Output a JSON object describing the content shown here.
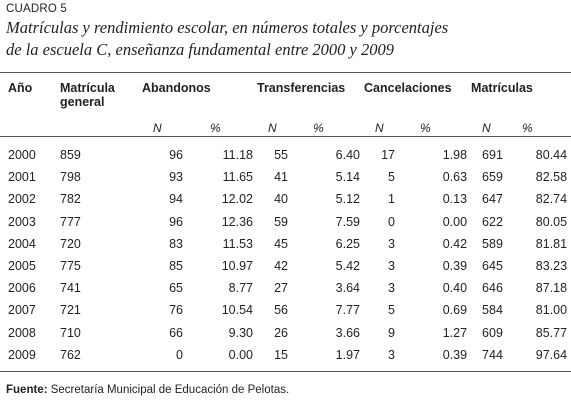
{
  "label": "CUADRO 5",
  "caption_line1": "Matrículas y rendimiento escolar, en números totales y porcentajes",
  "caption_line2": "de la escuela C, enseñanza fundamental entre 2000 y 2009",
  "headers": {
    "year": "Año",
    "enrollment_line1": "Matrícula",
    "enrollment_line2": "general",
    "dropouts": "Abandonos",
    "transfers": "Transferencias",
    "cancellations": "Cancelaciones",
    "enrollments": "Matrículas",
    "n": "N",
    "pct": "%"
  },
  "rows": [
    [
      "2000",
      "859",
      "96",
      "11.18",
      "55",
      "6.40",
      "17",
      "1.98",
      "691",
      "80.44"
    ],
    [
      "2001",
      "798",
      "93",
      "11.65",
      "41",
      "5.14",
      "5",
      "0.63",
      "659",
      "82.58"
    ],
    [
      "2002",
      "782",
      "94",
      "12.02",
      "40",
      "5.12",
      "1",
      "0.13",
      "647",
      "82.74"
    ],
    [
      "2003",
      "777",
      "96",
      "12.36",
      "59",
      "7.59",
      "0",
      "0.00",
      "622",
      "80.05"
    ],
    [
      "2004",
      "720",
      "83",
      "11.53",
      "45",
      "6.25",
      "3",
      "0.42",
      "589",
      "81.81"
    ],
    [
      "2005",
      "775",
      "85",
      "10.97",
      "42",
      "5.42",
      "3",
      "0.39",
      "645",
      "83.23"
    ],
    [
      "2006",
      "741",
      "65",
      "8.77",
      "27",
      "3.64",
      "3",
      "0.40",
      "646",
      "87.18"
    ],
    [
      "2007",
      "721",
      "76",
      "10.54",
      "56",
      "7.77",
      "5",
      "0.69",
      "584",
      "81.00"
    ],
    [
      "2008",
      "710",
      "66",
      "9.30",
      "26",
      "3.66",
      "9",
      "1.27",
      "609",
      "85.77"
    ],
    [
      "2009",
      "762",
      "0",
      "0.00",
      "15",
      "1.97",
      "3",
      "0.39",
      "744",
      "97.64"
    ]
  ],
  "footer_label": "Fuente:",
  "footer_text": " Secretaría Municipal de Educación de Pelotas."
}
